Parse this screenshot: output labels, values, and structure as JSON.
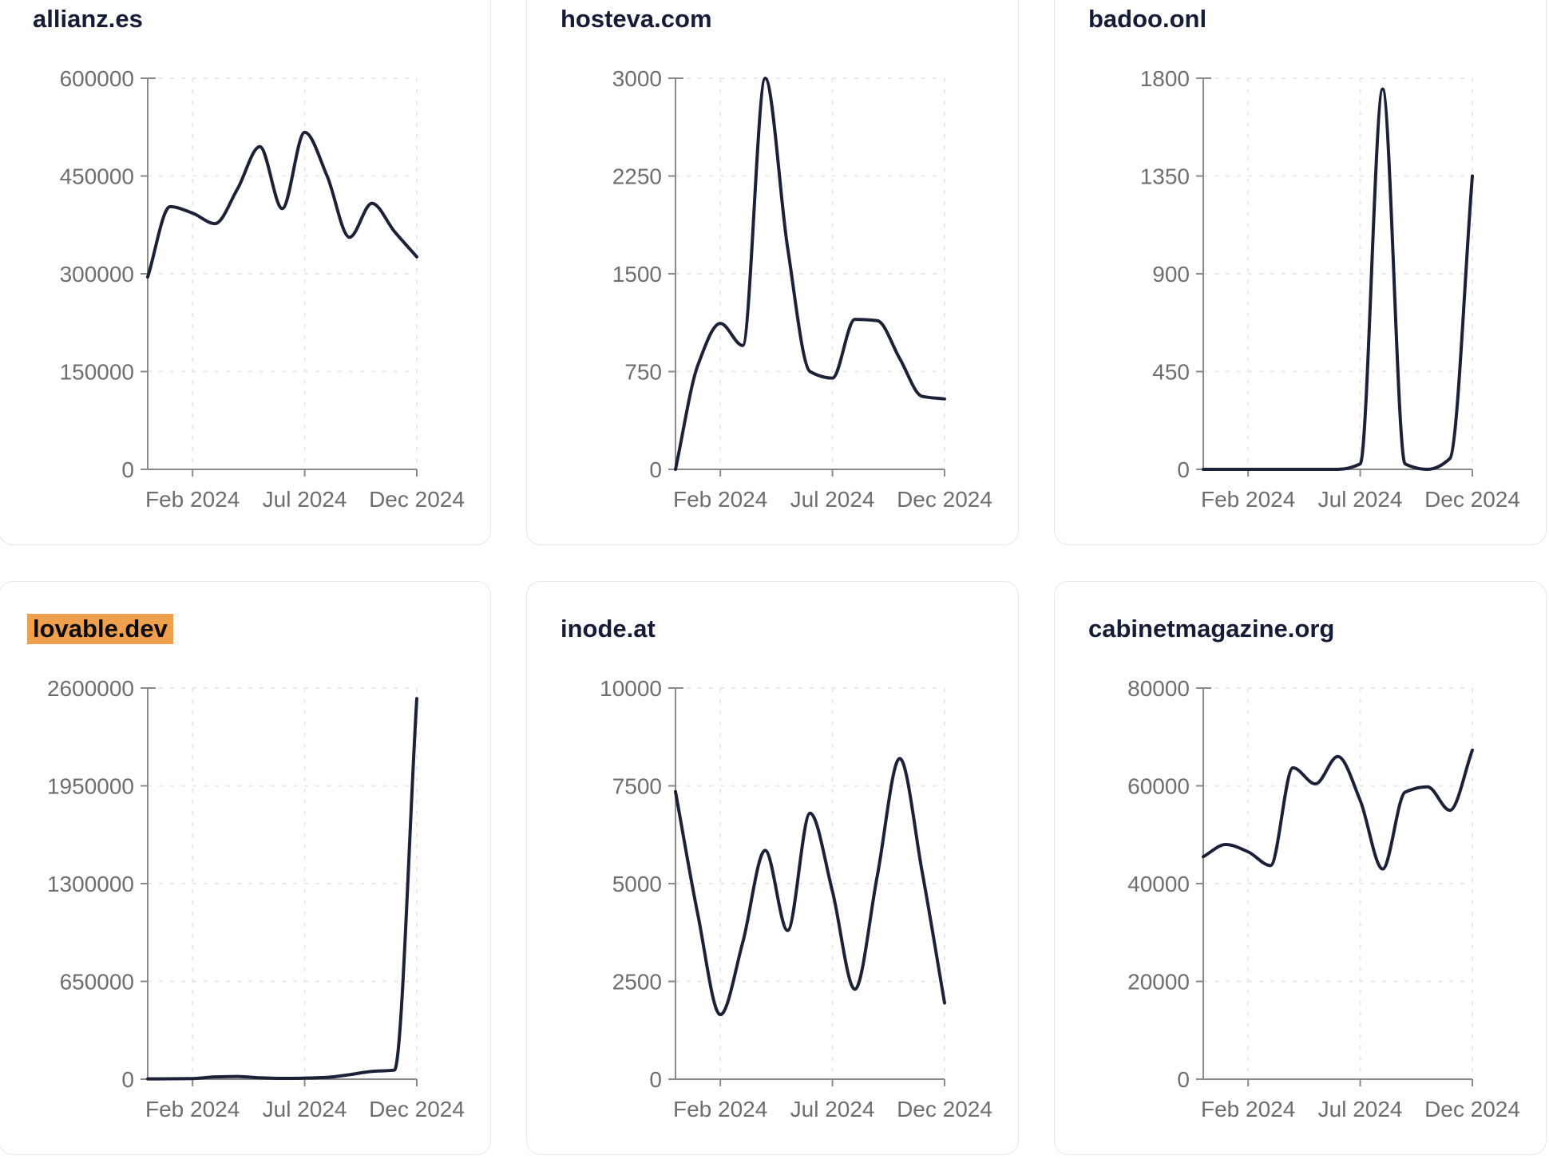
{
  "page": {
    "layout": "3x2 grid of website traffic trend cards",
    "x_axis_tick_labels": [
      "Feb 2024",
      "Jul 2024",
      "Dec 2024"
    ]
  },
  "style": {
    "page_bg": "#ffffff",
    "card_bg": "#ffffff",
    "card_border": "#e3e8f2",
    "line_color": "#1b2136",
    "title_color": "#151c35",
    "tick_label_color": "#6e6e6e",
    "axis_color": "#8a8a8a",
    "grid_color": "#e9e9e9",
    "highlight_color": "#efa04e"
  },
  "chart_data": [
    {
      "type": "line",
      "title": "allianz.es",
      "title_highlighted": false,
      "x": [
        "Dec 2023",
        "Jan 2024",
        "Feb 2024",
        "Mar 2024",
        "Apr 2024",
        "May 2024",
        "Jun 2024",
        "Jul 2024",
        "Aug 2024",
        "Sep 2024",
        "Oct 2024",
        "Nov 2024",
        "Dec 2024"
      ],
      "values": [
        295000,
        403000,
        393000,
        377000,
        430000,
        495000,
        400000,
        517000,
        450000,
        356000,
        408000,
        365000,
        326000
      ],
      "ylim": [
        0,
        600000
      ],
      "y_ticks": [
        0,
        150000,
        300000,
        450000,
        600000
      ],
      "x_tick_labels": [
        "Feb 2024",
        "Jul 2024",
        "Dec 2024"
      ],
      "x_tick_positions": [
        2,
        7,
        12
      ],
      "grid": true,
      "legend": false
    },
    {
      "type": "line",
      "title": "hosteva.com",
      "title_highlighted": false,
      "x": [
        "Dec 2023",
        "Jan 2024",
        "Feb 2024",
        "Mar 2024",
        "Apr 2024",
        "May 2024",
        "Jun 2024",
        "Jul 2024",
        "Aug 2024",
        "Sep 2024",
        "Oct 2024",
        "Nov 2024",
        "Dec 2024"
      ],
      "values": [
        0,
        800,
        1120,
        950,
        3000,
        1700,
        750,
        700,
        1150,
        1140,
        850,
        560,
        540
      ],
      "ylim": [
        0,
        3000
      ],
      "y_ticks": [
        0,
        750,
        1500,
        2250,
        3000
      ],
      "x_tick_labels": [
        "Feb 2024",
        "Jul 2024",
        "Dec 2024"
      ],
      "x_tick_positions": [
        2,
        7,
        12
      ],
      "grid": true,
      "legend": false
    },
    {
      "type": "line",
      "title": "badoo.onl",
      "title_highlighted": false,
      "x": [
        "Dec 2023",
        "Jan 2024",
        "Feb 2024",
        "Mar 2024",
        "Apr 2024",
        "May 2024",
        "Jun 2024",
        "Jul 2024",
        "Aug 2024",
        "Sep 2024",
        "Oct 2024",
        "Nov 2024",
        "Dec 2024"
      ],
      "values": [
        0,
        0,
        0,
        0,
        0,
        0,
        0,
        25,
        1750,
        25,
        0,
        50,
        1350
      ],
      "ylim": [
        0,
        1800
      ],
      "y_ticks": [
        0,
        450,
        900,
        1350,
        1800
      ],
      "x_tick_labels": [
        "Feb 2024",
        "Jul 2024",
        "Dec 2024"
      ],
      "x_tick_positions": [
        2,
        7,
        12
      ],
      "grid": true,
      "legend": false
    },
    {
      "type": "line",
      "title": "lovable.dev",
      "title_highlighted": true,
      "x": [
        "Dec 2023",
        "Jan 2024",
        "Feb 2024",
        "Mar 2024",
        "Apr 2024",
        "May 2024",
        "Jun 2024",
        "Jul 2024",
        "Aug 2024",
        "Sep 2024",
        "Oct 2024",
        "Nov 2024",
        "Dec 2024"
      ],
      "values": [
        2000,
        2500,
        4000,
        15000,
        18000,
        9000,
        5000,
        7000,
        12000,
        30000,
        52000,
        60000,
        2530000
      ],
      "ylim": [
        0,
        2600000
      ],
      "y_ticks": [
        0,
        650000,
        1300000,
        1950000,
        2600000
      ],
      "x_tick_labels": [
        "Feb 2024",
        "Jul 2024",
        "Dec 2024"
      ],
      "x_tick_positions": [
        2,
        7,
        12
      ],
      "grid": true,
      "legend": false
    },
    {
      "type": "line",
      "title": "inode.at",
      "title_highlighted": false,
      "x": [
        "Dec 2023",
        "Jan 2024",
        "Feb 2024",
        "Mar 2024",
        "Apr 2024",
        "May 2024",
        "Jun 2024",
        "Jul 2024",
        "Aug 2024",
        "Sep 2024",
        "Oct 2024",
        "Nov 2024",
        "Dec 2024"
      ],
      "values": [
        7350,
        4200,
        1650,
        3500,
        5850,
        3800,
        6800,
        4800,
        2300,
        5200,
        8200,
        5300,
        1950
      ],
      "ylim": [
        0,
        10000
      ],
      "y_ticks": [
        0,
        2500,
        5000,
        7500,
        10000
      ],
      "x_tick_labels": [
        "Feb 2024",
        "Jul 2024",
        "Dec 2024"
      ],
      "x_tick_positions": [
        2,
        7,
        12
      ],
      "grid": true,
      "legend": false
    },
    {
      "type": "line",
      "title": "cabinetmagazine.org",
      "title_highlighted": false,
      "x": [
        "Dec 2023",
        "Jan 2024",
        "Feb 2024",
        "Mar 2024",
        "Apr 2024",
        "May 2024",
        "Jun 2024",
        "Jul 2024",
        "Aug 2024",
        "Sep 2024",
        "Oct 2024",
        "Nov 2024",
        "Dec 2024"
      ],
      "values": [
        45500,
        48000,
        46500,
        43700,
        63700,
        60400,
        66000,
        57000,
        43000,
        58700,
        59800,
        55000,
        67300
      ],
      "ylim": [
        0,
        80000
      ],
      "y_ticks": [
        0,
        20000,
        40000,
        60000,
        80000
      ],
      "x_tick_labels": [
        "Feb 2024",
        "Jul 2024",
        "Dec 2024"
      ],
      "x_tick_positions": [
        2,
        7,
        12
      ],
      "grid": true,
      "legend": false
    }
  ]
}
